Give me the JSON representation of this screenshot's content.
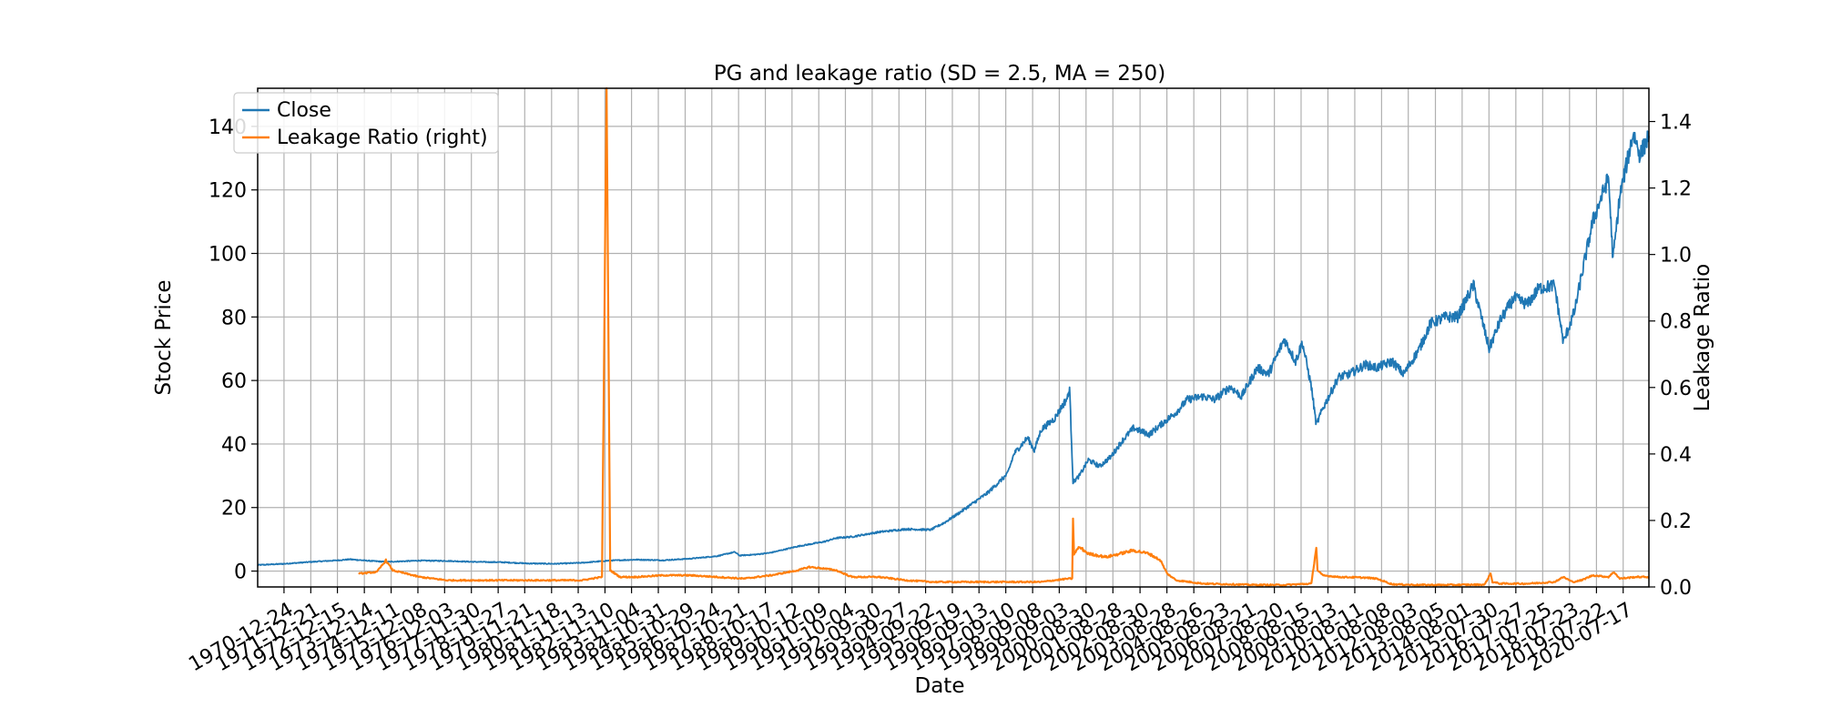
{
  "chart_data": {
    "type": "line",
    "title": "PG and leakage ratio (SD = 2.5, MA = 250)",
    "xlabel": "Date",
    "ylabel": "Stock Price",
    "ylabel_right": "Leakage Ratio",
    "xlim": [
      "1970-01-02",
      "2021-06-30"
    ],
    "ylim": [
      -5,
      152
    ],
    "ylim_right": [
      0,
      1.5
    ],
    "grid": true,
    "legend_position": "top-left",
    "x_tick_labels": [
      "1970-12-24",
      "1971-12-21",
      "1972-12-15",
      "1973-12-14",
      "1974-12-11",
      "1975-12-08",
      "1976-12-03",
      "1977-11-30",
      "1978-11-27",
      "1979-11-21",
      "1980-11-18",
      "1981-11-13",
      "1982-11-10",
      "1983-11-04",
      "1984-10-31",
      "1985-10-29",
      "1986-10-24",
      "1987-10-21",
      "1988-10-17",
      "1989-10-12",
      "1990-10-09",
      "1991-10-04",
      "1992-09-30",
      "1993-09-27",
      "1994-09-22",
      "1995-09-19",
      "1996-09-13",
      "1997-09-10",
      "1998-09-08",
      "1999-09-03",
      "2000-08-30",
      "2001-08-28",
      "2002-08-30",
      "2003-08-28",
      "2004-08-26",
      "2005-08-23",
      "2006-08-21",
      "2007-08-20",
      "2008-08-15",
      "2009-08-13",
      "2010-08-11",
      "2011-08-08",
      "2012-08-03",
      "2013-08-05",
      "2014-08-01",
      "2015-07-30",
      "2016-07-27",
      "2017-07-25",
      "2018-07-23",
      "2019-07-22",
      "2020-07-17"
    ],
    "y_ticks": [
      0,
      20,
      40,
      60,
      80,
      100,
      120,
      140
    ],
    "y_ticks_right": [
      "0.0",
      "0.2",
      "0.4",
      "0.6",
      "0.8",
      "1.0",
      "1.2",
      "1.4"
    ],
    "series": [
      {
        "name": "Close",
        "axis": "left",
        "color": "#1f77b4",
        "points": [
          [
            "1970-01-02",
            1.9
          ],
          [
            "1971-01-01",
            2.3
          ],
          [
            "1972-01-01",
            2.9
          ],
          [
            "1973-01-01",
            3.4
          ],
          [
            "1973-06-01",
            3.7
          ],
          [
            "1974-01-01",
            3.3
          ],
          [
            "1974-10-01",
            2.9
          ],
          [
            "1975-06-01",
            3.1
          ],
          [
            "1976-01-01",
            3.3
          ],
          [
            "1977-01-01",
            3.2
          ],
          [
            "1978-01-01",
            2.9
          ],
          [
            "1979-01-01",
            2.8
          ],
          [
            "1980-01-01",
            2.4
          ],
          [
            "1981-01-01",
            2.3
          ],
          [
            "1982-01-01",
            2.6
          ],
          [
            "1983-01-01",
            3.3
          ],
          [
            "1984-01-01",
            3.6
          ],
          [
            "1985-01-01",
            3.4
          ],
          [
            "1986-01-01",
            3.9
          ],
          [
            "1987-01-01",
            4.7
          ],
          [
            "1987-09-01",
            6.0
          ],
          [
            "1987-11-01",
            4.9
          ],
          [
            "1988-06-01",
            5.2
          ],
          [
            "1989-01-01",
            5.8
          ],
          [
            "1990-01-01",
            7.8
          ],
          [
            "1991-01-01",
            9.3
          ],
          [
            "1991-06-01",
            10.4
          ],
          [
            "1992-01-01",
            10.8
          ],
          [
            "1993-01-01",
            12.3
          ],
          [
            "1994-01-01",
            13.2
          ],
          [
            "1994-12-01",
            13.0
          ],
          [
            "1995-06-01",
            15.2
          ],
          [
            "1996-01-01",
            18.5
          ],
          [
            "1997-01-01",
            24.5
          ],
          [
            "1997-10-01",
            30.5
          ],
          [
            "1998-01-01",
            37.0
          ],
          [
            "1998-07-01",
            42.0
          ],
          [
            "1998-10-01",
            38.0
          ],
          [
            "1999-01-01",
            44.5
          ],
          [
            "1999-07-01",
            48.0
          ],
          [
            "2000-01-01",
            55.0
          ],
          [
            "2000-01-20",
            58.0
          ],
          [
            "2000-03-07",
            28.0
          ],
          [
            "2000-06-01",
            30.0
          ],
          [
            "2000-10-01",
            35.0
          ],
          [
            "2001-03-01",
            33.0
          ],
          [
            "2001-08-01",
            36.0
          ],
          [
            "2002-01-01",
            41.0
          ],
          [
            "2002-06-01",
            45.0
          ],
          [
            "2003-01-01",
            43.0
          ],
          [
            "2003-06-01",
            46.0
          ],
          [
            "2004-01-01",
            50.0
          ],
          [
            "2004-06-01",
            54.0
          ],
          [
            "2005-01-01",
            55.0
          ],
          [
            "2005-06-01",
            54.0
          ],
          [
            "2006-01-01",
            58.0
          ],
          [
            "2006-06-01",
            55.0
          ],
          [
            "2007-01-01",
            64.0
          ],
          [
            "2007-06-01",
            62.0
          ],
          [
            "2008-01-01",
            73.0
          ],
          [
            "2008-06-01",
            66.0
          ],
          [
            "2008-09-01",
            72.0
          ],
          [
            "2009-01-01",
            58.0
          ],
          [
            "2009-03-09",
            46.0
          ],
          [
            "2009-06-01",
            51.0
          ],
          [
            "2010-01-01",
            61.0
          ],
          [
            "2010-06-01",
            62.0
          ],
          [
            "2011-01-01",
            65.0
          ],
          [
            "2011-06-01",
            64.0
          ],
          [
            "2012-01-01",
            66.0
          ],
          [
            "2012-06-01",
            62.0
          ],
          [
            "2013-01-01",
            70.0
          ],
          [
            "2013-06-01",
            78.0
          ],
          [
            "2014-01-01",
            80.0
          ],
          [
            "2014-06-01",
            80.0
          ],
          [
            "2015-01-01",
            90.0
          ],
          [
            "2015-08-01",
            70.0
          ],
          [
            "2016-01-01",
            79.0
          ],
          [
            "2016-07-01",
            86.0
          ],
          [
            "2017-01-01",
            84.0
          ],
          [
            "2017-06-01",
            89.0
          ],
          [
            "2018-01-01",
            90.0
          ],
          [
            "2018-05-01",
            72.0
          ],
          [
            "2018-10-01",
            82.0
          ],
          [
            "2019-01-01",
            93.0
          ],
          [
            "2019-06-01",
            110.0
          ],
          [
            "2020-01-01",
            124.0
          ],
          [
            "2020-03-01",
            98.0
          ],
          [
            "2020-06-01",
            118.0
          ],
          [
            "2020-12-01",
            138.0
          ],
          [
            "2021-03-01",
            131.0
          ],
          [
            "2021-06-30",
            137.0
          ]
        ]
      },
      {
        "name": "Leakage Ratio (right)",
        "axis": "right",
        "color": "#ff7f0e",
        "points": [
          [
            "1973-10-01",
            0.04
          ],
          [
            "1974-06-01",
            0.045
          ],
          [
            "1974-10-01",
            0.08
          ],
          [
            "1975-01-01",
            0.05
          ],
          [
            "1976-01-01",
            0.03
          ],
          [
            "1977-01-01",
            0.02
          ],
          [
            "1978-01-01",
            0.02
          ],
          [
            "1979-01-01",
            0.02
          ],
          [
            "1980-01-01",
            0.02
          ],
          [
            "1981-01-01",
            0.02
          ],
          [
            "1982-01-01",
            0.02
          ],
          [
            "1982-10-01",
            0.03
          ],
          [
            "1982-12-01",
            1.5
          ],
          [
            "1983-01-20",
            0.05
          ],
          [
            "1983-06-01",
            0.03
          ],
          [
            "1984-01-01",
            0.03
          ],
          [
            "1985-01-01",
            0.035
          ],
          [
            "1986-01-01",
            0.035
          ],
          [
            "1987-01-01",
            0.03
          ],
          [
            "1988-01-01",
            0.025
          ],
          [
            "1989-01-01",
            0.035
          ],
          [
            "1990-01-01",
            0.05
          ],
          [
            "1990-06-01",
            0.06
          ],
          [
            "1991-01-01",
            0.055
          ],
          [
            "1991-06-01",
            0.05
          ],
          [
            "1992-01-01",
            0.03
          ],
          [
            "1993-01-01",
            0.03
          ],
          [
            "1994-01-01",
            0.02
          ],
          [
            "1995-01-01",
            0.015
          ],
          [
            "1996-01-01",
            0.015
          ],
          [
            "1997-01-01",
            0.015
          ],
          [
            "1998-01-01",
            0.015
          ],
          [
            "1999-01-01",
            0.015
          ],
          [
            "2000-01-01",
            0.025
          ],
          [
            "2000-02-25",
            0.025
          ],
          [
            "2000-03-07",
            0.2
          ],
          [
            "2000-03-20",
            0.1
          ],
          [
            "2000-06-01",
            0.12
          ],
          [
            "2000-10-01",
            0.1
          ],
          [
            "2001-06-01",
            0.09
          ],
          [
            "2002-06-01",
            0.11
          ],
          [
            "2003-01-01",
            0.1
          ],
          [
            "2003-06-01",
            0.08
          ],
          [
            "2003-09-01",
            0.04
          ],
          [
            "2004-01-01",
            0.02
          ],
          [
            "2005-01-01",
            0.01
          ],
          [
            "2006-01-01",
            0.008
          ],
          [
            "2007-01-01",
            0.006
          ],
          [
            "2008-01-01",
            0.006
          ],
          [
            "2009-01-01",
            0.01
          ],
          [
            "2009-03-09",
            0.12
          ],
          [
            "2009-03-25",
            0.05
          ],
          [
            "2009-06-01",
            0.035
          ],
          [
            "2010-01-01",
            0.03
          ],
          [
            "2011-01-01",
            0.028
          ],
          [
            "2011-06-01",
            0.025
          ],
          [
            "2012-01-01",
            0.008
          ],
          [
            "2013-01-01",
            0.006
          ],
          [
            "2014-01-01",
            0.006
          ],
          [
            "2015-06-01",
            0.007
          ],
          [
            "2015-08-20",
            0.04
          ],
          [
            "2015-09-15",
            0.015
          ],
          [
            "2016-01-01",
            0.01
          ],
          [
            "2017-01-01",
            0.01
          ],
          [
            "2018-01-01",
            0.015
          ],
          [
            "2018-05-01",
            0.03
          ],
          [
            "2018-09-01",
            0.015
          ],
          [
            "2019-01-01",
            0.02
          ],
          [
            "2019-06-01",
            0.035
          ],
          [
            "2020-01-01",
            0.03
          ],
          [
            "2020-03-15",
            0.045
          ],
          [
            "2020-06-01",
            0.025
          ],
          [
            "2021-01-01",
            0.03
          ],
          [
            "2021-06-30",
            0.03
          ]
        ]
      }
    ]
  }
}
